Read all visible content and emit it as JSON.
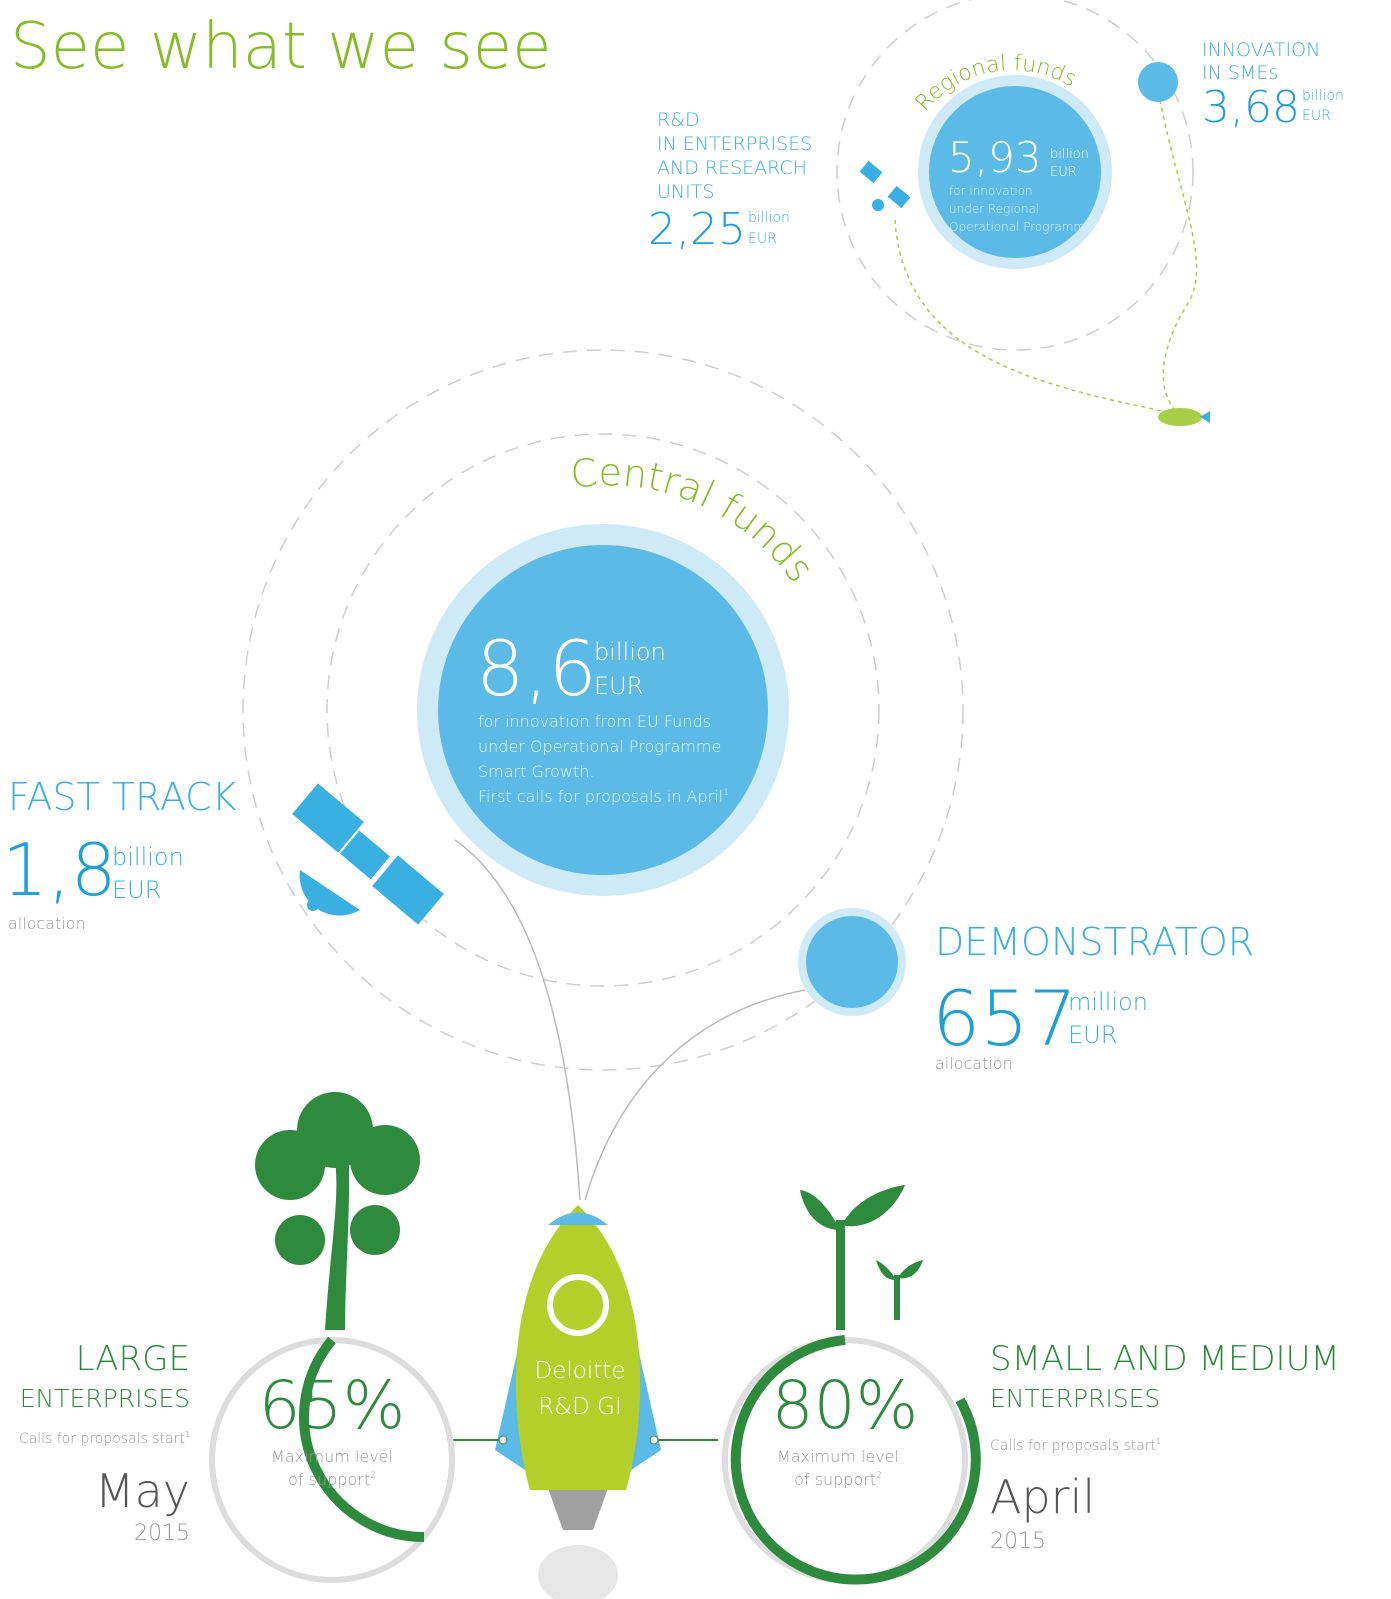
{
  "header": {
    "title": "See what we see"
  },
  "regional": {
    "label": "Regional funds",
    "amount": "5,93",
    "unit": "billion",
    "currency": "EUR",
    "description": [
      "for innovation",
      "under Regional",
      "Operational Programmes"
    ]
  },
  "rd": {
    "label": [
      "R&D",
      "IN ENTERPRISES",
      "AND RESEARCH",
      "UNITS"
    ],
    "amount": "2,25",
    "unit": "billion",
    "currency": "EUR"
  },
  "innovation": {
    "label": [
      "INNOVATION",
      "IN SMEs"
    ],
    "amount": "3,68",
    "unit": "billion",
    "currency": "EUR"
  },
  "central": {
    "label": "Central funds",
    "amount": "8,6",
    "unit": "billion",
    "currency": "EUR",
    "description": [
      "for innovation from EU Funds",
      "under Operational Programme",
      "Smart Growth.",
      "First calls for proposals in April"
    ],
    "footnote": "1"
  },
  "fast_track": {
    "label": "FAST TRACK",
    "amount": "1,8",
    "unit": "billion",
    "currency": "EUR",
    "note": "allocation"
  },
  "demonstrator": {
    "label": "DEMONSTRATOR",
    "amount": "657",
    "unit": "million",
    "currency": "EUR",
    "note": "allocation"
  },
  "rocket": {
    "label": [
      "Deloitte",
      "R&D GI"
    ]
  },
  "large": {
    "label": [
      "LARGE",
      "ENTERPRISES"
    ],
    "calls": "Calls for proposals start",
    "calls_footnote": "1",
    "month": "May",
    "year": "2015",
    "percent": "65%",
    "support": [
      "Maximum level",
      "of support"
    ],
    "support_footnote": "2"
  },
  "sme": {
    "label": [
      "SMALL AND MEDIUM",
      "ENTERPRISES"
    ],
    "calls": "Calls for proposals start",
    "calls_footnote": "1",
    "month": "April",
    "year": "2015",
    "percent": "80%",
    "support": [
      "Maximum level",
      "of support"
    ],
    "support_footnote": "2"
  }
}
